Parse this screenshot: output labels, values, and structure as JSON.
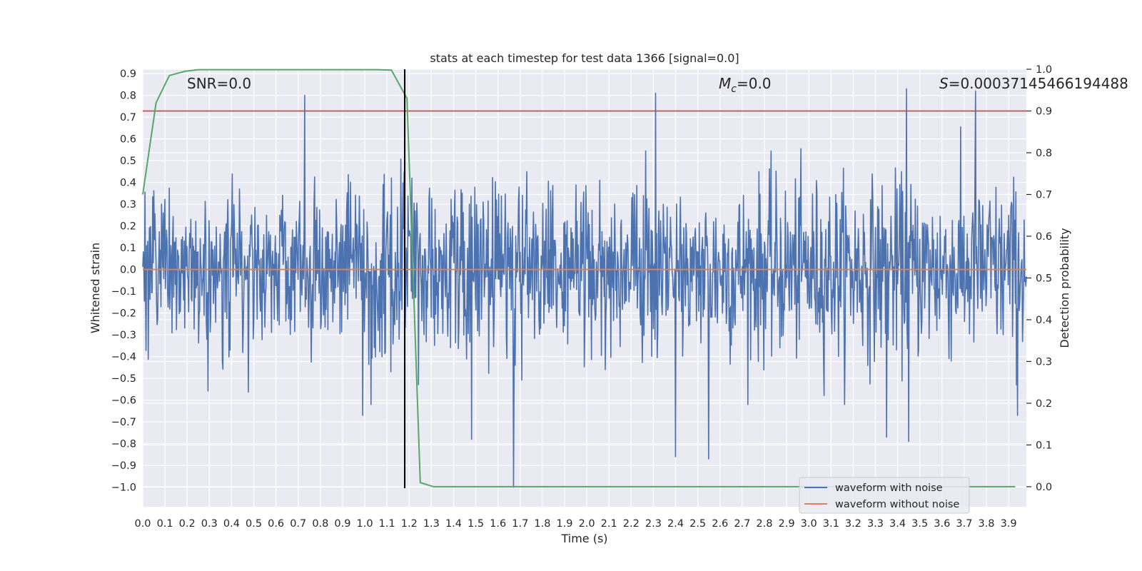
{
  "chart_data": {
    "type": "line",
    "title": "stats at each timestep for test data 1366 [signal=0.0]",
    "xlabel": "Time (s)",
    "ylabel": "Whitened strain",
    "ylabel_right": "Detection probability",
    "xlim": [
      0.0,
      3.98
    ],
    "ylim": [
      -1.09,
      0.92
    ],
    "ylim_right": [
      -0.048,
      1.0
    ],
    "x_ticks": [
      "0.0",
      "0.1",
      "0.2",
      "0.3",
      "0.4",
      "0.5",
      "0.6",
      "0.7",
      "0.8",
      "0.9",
      "1.0",
      "1.1",
      "1.2",
      "1.3",
      "1.4",
      "1.5",
      "1.6",
      "1.7",
      "1.8",
      "1.9",
      "2.0",
      "2.1",
      "2.2",
      "2.3",
      "2.4",
      "2.5",
      "2.6",
      "2.7",
      "2.8",
      "2.9",
      "3.0",
      "3.1",
      "3.2",
      "3.3",
      "3.4",
      "3.5",
      "3.6",
      "3.7",
      "3.8",
      "3.9"
    ],
    "y_ticks": [
      "0.9",
      "0.8",
      "0.7",
      "0.6",
      "0.5",
      "0.4",
      "0.3",
      "0.2",
      "0.1",
      "0.0",
      "−0.1",
      "−0.2",
      "−0.3",
      "−0.4",
      "−0.5",
      "−0.6",
      "−0.7",
      "−0.8",
      "−0.9",
      "−1.0"
    ],
    "y_ticks_right": [
      "1.0",
      "0.9",
      "0.8",
      "0.7",
      "0.6",
      "0.5",
      "0.4",
      "0.3",
      "0.2",
      "0.1",
      "0.0"
    ],
    "annotations": {
      "snr_prefix": "SNR=",
      "snr_value": "0.0",
      "mc_symbol": "M",
      "mc_subscript": "c",
      "mc_value": "=0.0",
      "s_symbol": "S",
      "s_value": "=0.00037145466194488"
    },
    "series": [
      {
        "name": "waveform with noise",
        "color": "#4c72b0",
        "generated": true,
        "n_samples": 1600,
        "seed": 1366,
        "noise_std": 0.2,
        "peaks": [
          {
            "x": 0.73,
            "y": 0.8
          },
          {
            "x": 2.31,
            "y": 0.81
          },
          {
            "x": 3.44,
            "y": 0.83
          },
          {
            "x": 3.75,
            "y": 0.82
          },
          {
            "x": 1.67,
            "y": -1.0
          },
          {
            "x": 2.55,
            "y": -0.87
          },
          {
            "x": 2.4,
            "y": -0.86
          },
          {
            "x": 3.45,
            "y": -0.79
          },
          {
            "x": 3.35,
            "y": -0.77
          },
          {
            "x": 1.48,
            "y": -0.78
          },
          {
            "x": 0.99,
            "y": -0.67
          },
          {
            "x": 3.94,
            "y": -0.67
          }
        ]
      },
      {
        "name": "waveform without noise",
        "color": "#dd8452",
        "x": [
          0.0,
          3.98
        ],
        "y": [
          0.0,
          0.0
        ]
      },
      {
        "name": "detection probability",
        "color": "#55a868",
        "axis": "right",
        "x": [
          0.0,
          0.06,
          0.12,
          0.19,
          0.25,
          0.31,
          0.37,
          0.44,
          0.5,
          0.56,
          0.62,
          0.69,
          0.75,
          0.81,
          0.87,
          0.94,
          1.0,
          1.06,
          1.12,
          1.19,
          1.25,
          1.31,
          1.37,
          1.44,
          1.5,
          1.56,
          1.62,
          1.69,
          1.75,
          1.81,
          1.87,
          1.94,
          2.0,
          2.5,
          3.0,
          3.5,
          3.93
        ],
        "y": [
          0.7,
          0.92,
          0.985,
          0.995,
          0.999,
          0.999,
          0.999,
          0.999,
          0.999,
          0.999,
          0.999,
          0.999,
          0.999,
          0.999,
          0.999,
          0.999,
          0.999,
          0.999,
          0.998,
          0.93,
          0.01,
          0.0,
          0.0,
          0.0,
          0.0,
          0.0,
          0.0,
          0.0,
          0.0,
          0.0,
          0.0,
          0.0,
          0.0,
          0.0,
          0.0,
          0.0,
          0.0
        ]
      }
    ],
    "threshold": {
      "axis": "right",
      "value": 0.9,
      "color": "#c44e52"
    },
    "vline": {
      "x": 1.18,
      "color": "#000000"
    },
    "grid": true,
    "legend": {
      "placement": "lower-right",
      "entries": [
        {
          "label": "waveform with noise",
          "color": "#4c72b0"
        },
        {
          "label": "waveform without noise",
          "color": "#dd8452"
        }
      ]
    },
    "colors": {
      "plot_bg": "#eaeaf2",
      "grid": "#ffffff",
      "text": "#262626"
    }
  }
}
